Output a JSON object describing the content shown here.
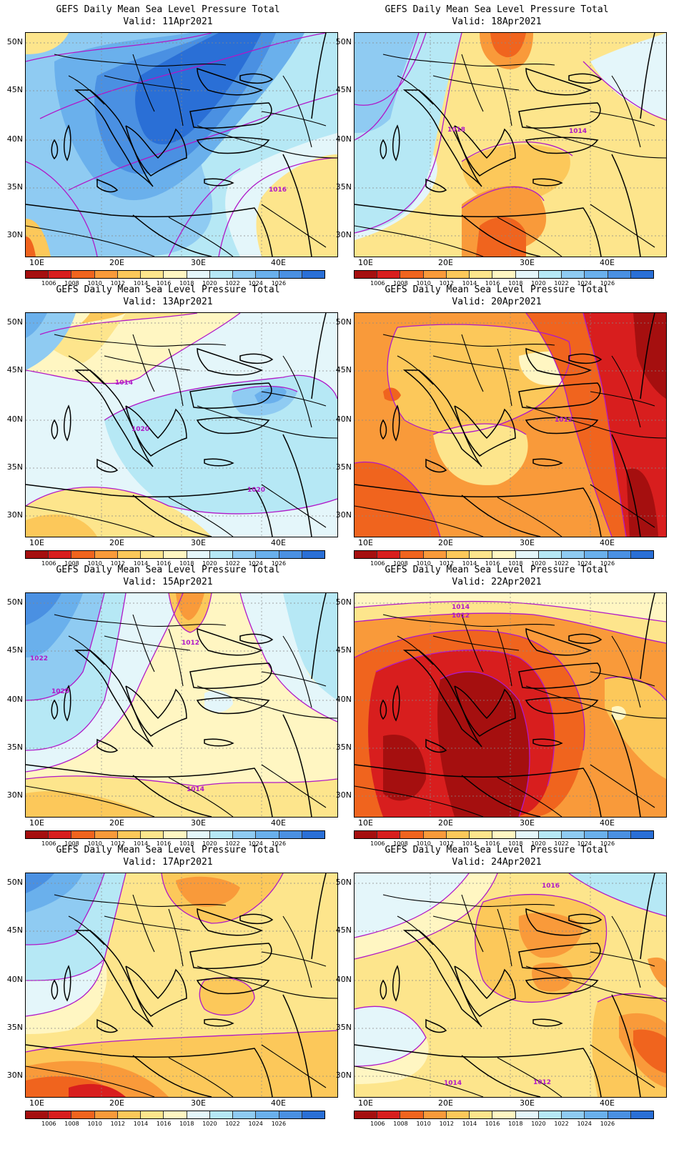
{
  "colorbar": {
    "colors": [
      "#a50f0f",
      "#d81e1e",
      "#f0641e",
      "#f99a3a",
      "#fcc85a",
      "#fde58c",
      "#fff6c2",
      "#e4f6fa",
      "#b6e8f5",
      "#8fcbf2",
      "#6ab0ec",
      "#4a90e2",
      "#2a6fd6"
    ],
    "labels": [
      "1006",
      "1008",
      "1010",
      "1012",
      "1014",
      "1016",
      "1018",
      "1020",
      "1022",
      "1024",
      "1026"
    ]
  },
  "axes": {
    "lat_labels": [
      "50N",
      "45N",
      "40N",
      "35N",
      "30N"
    ],
    "lon_labels": [
      "10E",
      "20E",
      "30E",
      "40E"
    ]
  },
  "contour_color": "#b018c8",
  "panels": [
    {
      "title": "GEFS Daily Mean Sea Level Pressure Total",
      "valid": "Valid:  11Apr2021",
      "theme": "high",
      "labels": [
        "1016"
      ]
    },
    {
      "title": "GEFS Daily Mean Sea Level Pressure Total",
      "valid": "Valid:  18Apr2021",
      "theme": "mixed",
      "labels": [
        "1018",
        "1014"
      ]
    },
    {
      "title": "GEFS Daily Mean Sea Level Pressure Total",
      "valid": "Valid:  13Apr2021",
      "theme": "blue",
      "labels": [
        "1014",
        "1020",
        "1020"
      ]
    },
    {
      "title": "GEFS Daily Mean Sea Level Pressure Total",
      "valid": "Valid:  20Apr2021",
      "theme": "orange",
      "labels": [
        "1012"
      ]
    },
    {
      "title": "GEFS Daily Mean Sea Level Pressure Total",
      "valid": "Valid:  15Apr2021",
      "theme": "mixed2",
      "labels": [
        "1022",
        "1020",
        "1012",
        "1014"
      ]
    },
    {
      "title": "GEFS Daily Mean Sea Level Pressure Total",
      "valid": "Valid:  22Apr2021",
      "theme": "low",
      "labels": [
        "1014",
        "1012"
      ]
    },
    {
      "title": "GEFS Daily Mean Sea Level Pressure Total",
      "valid": "Valid:  17Apr2021",
      "theme": "mixed3",
      "labels": []
    },
    {
      "title": "GEFS Daily Mean Sea Level Pressure Total",
      "valid": "Valid:  24Apr2021",
      "theme": "warm",
      "labels": [
        "1016",
        "1014",
        "1012"
      ]
    }
  ]
}
